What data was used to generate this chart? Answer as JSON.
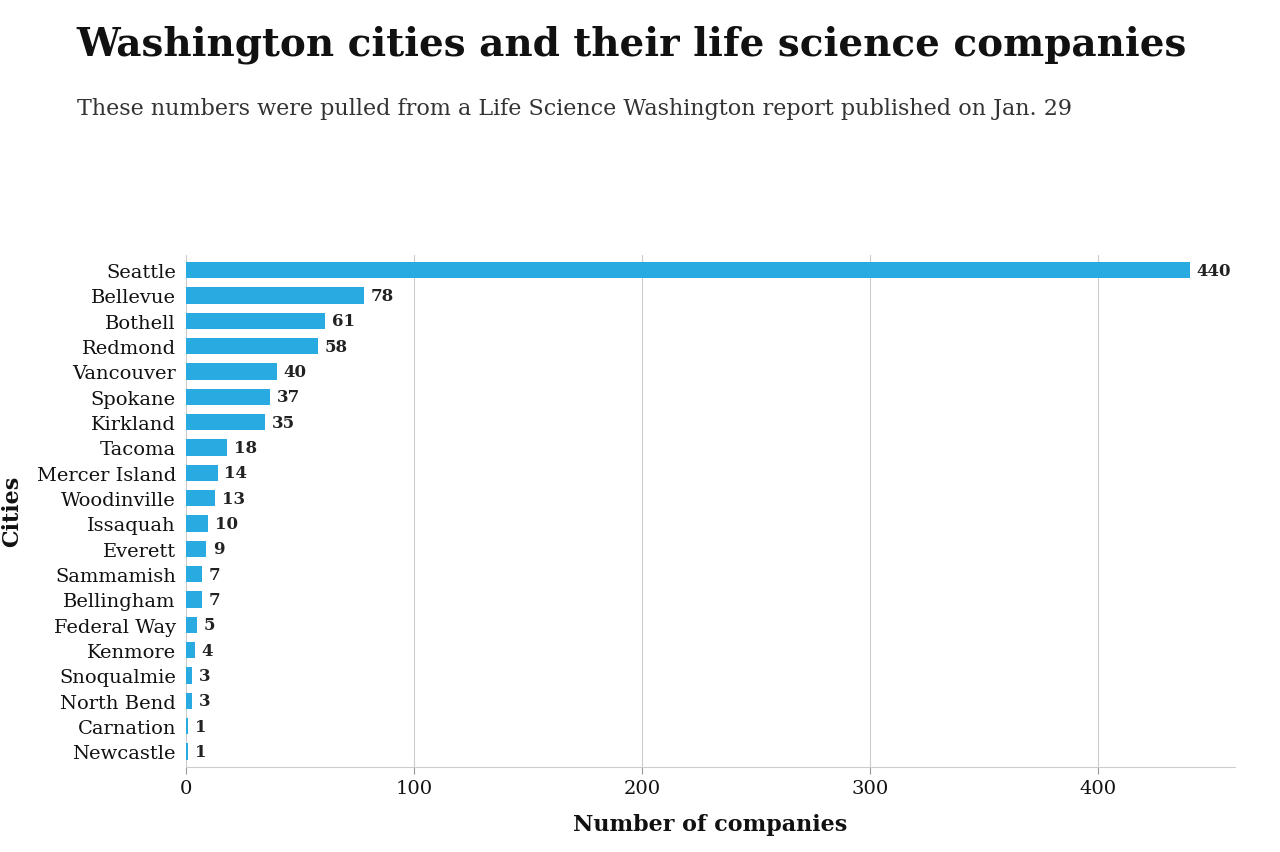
{
  "title": "Washington cities and their life science companies",
  "subtitle": "These numbers were pulled from a Life Science Washington report published on Jan. 29",
  "xlabel": "Number of companies",
  "ylabel": "Cities",
  "bar_color": "#29ABE2",
  "background_color": "#FFFFFF",
  "grid_color": "#CCCCCC",
  "categories": [
    "Seattle",
    "Bellevue",
    "Bothell",
    "Redmond",
    "Vancouver",
    "Spokane",
    "Kirkland",
    "Tacoma",
    "Mercer Island",
    "Woodinville",
    "Issaquah",
    "Everett",
    "Sammamish",
    "Bellingham",
    "Federal Way",
    "Kenmore",
    "Snoqualmie",
    "North Bend",
    "Carnation",
    "Newcastle"
  ],
  "values": [
    440,
    78,
    61,
    58,
    40,
    37,
    35,
    18,
    14,
    13,
    10,
    9,
    7,
    7,
    5,
    4,
    3,
    3,
    1,
    1
  ],
  "xlim": [
    0,
    460
  ],
  "xticks": [
    0,
    100,
    200,
    300,
    400
  ],
  "title_fontsize": 28,
  "subtitle_fontsize": 16,
  "label_fontsize": 14,
  "tick_fontsize": 14,
  "annotation_fontsize": 12,
  "ylabel_fontsize": 16
}
